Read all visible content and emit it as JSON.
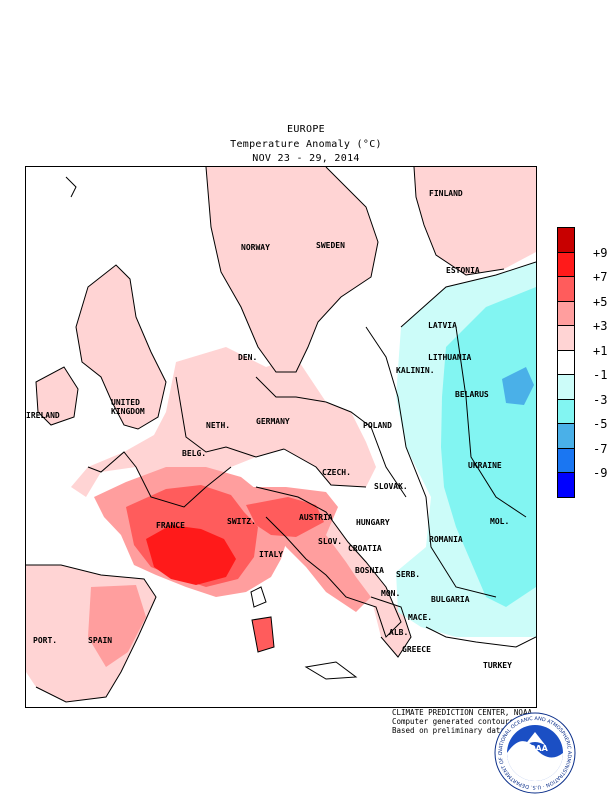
{
  "header": {
    "region": "EUROPE",
    "metric": "Temperature Anomaly (°C)",
    "period": "NOV 23 - 29, 2014"
  },
  "countries": [
    {
      "label": "FINLAND",
      "anomaly_class": "+1 to +3"
    },
    {
      "label": "NORWAY",
      "anomaly_class": "+1 to +3"
    },
    {
      "label": "SWEDEN",
      "anomaly_class": "+1 to +3"
    },
    {
      "label": "ESTONIA",
      "anomaly_class": "+1 to +3"
    },
    {
      "label": "LATVIA",
      "anomaly_class": "-1 to -3"
    },
    {
      "label": "LITHUANIA",
      "anomaly_class": "-1 to -3"
    },
    {
      "label": "KALININ.",
      "anomaly_class": "-1 to -3"
    },
    {
      "label": "DEN.",
      "anomaly_class": "+1 to +3"
    },
    {
      "label": "BELARUS",
      "anomaly_class": "-3 to -5"
    },
    {
      "label": "IRELAND",
      "anomaly_class": "+1 to +3"
    },
    {
      "label": "UNITED",
      "anomaly_class": "+1 to +3"
    },
    {
      "label": "KINGDOM",
      "anomaly_class": "+1 to +3"
    },
    {
      "label": "NETH.",
      "anomaly_class": "+1 to +3"
    },
    {
      "label": "GERMANY",
      "anomaly_class": "+1 to +3"
    },
    {
      "label": "POLAND",
      "anomaly_class": "-1 to +1"
    },
    {
      "label": "BELG.",
      "anomaly_class": "+1 to +3"
    },
    {
      "label": "UKRAINE",
      "anomaly_class": "-3 to -5"
    },
    {
      "label": "CZECH.",
      "anomaly_class": "+1 to +3"
    },
    {
      "label": "SLOVAK.",
      "anomaly_class": "-1 to +1"
    },
    {
      "label": "FRANCE",
      "anomaly_class": "+5 to +7"
    },
    {
      "label": "SWITZ.",
      "anomaly_class": "+5 to +7"
    },
    {
      "label": "AUSTRIA",
      "anomaly_class": "+5 to +7"
    },
    {
      "label": "HUNGARY",
      "anomaly_class": "-1 to +1"
    },
    {
      "label": "MOL.",
      "anomaly_class": "-3 to -5"
    },
    {
      "label": "SLOV.",
      "anomaly_class": "+1 to +3"
    },
    {
      "label": "ROMANIA",
      "anomaly_class": "-1 to -3"
    },
    {
      "label": "CROATIA",
      "anomaly_class": "-1 to +1"
    },
    {
      "label": "ITALY",
      "anomaly_class": "+3 to +5"
    },
    {
      "label": "BOSNIA",
      "anomaly_class": "-1 to +1"
    },
    {
      "label": "SERB.",
      "anomaly_class": "-1 to +1"
    },
    {
      "label": "MON.",
      "anomaly_class": "+1 to +3"
    },
    {
      "label": "BULGARIA",
      "anomaly_class": "-1 to -3"
    },
    {
      "label": "PORT.",
      "anomaly_class": "+1 to +3"
    },
    {
      "label": "SPAIN",
      "anomaly_class": "+1 to +3"
    },
    {
      "label": "MACE.",
      "anomaly_class": "-1 to +1"
    },
    {
      "label": "ALB.",
      "anomaly_class": "+1 to +3"
    },
    {
      "label": "GREECE",
      "anomaly_class": "-1 to +1"
    },
    {
      "label": "TURKEY",
      "anomaly_class": "-1 to -3"
    }
  ],
  "legend": {
    "colors": [
      "#c80000",
      "#ff1a1a",
      "#ff5c5c",
      "#ff9e9e",
      "#ffd4d4",
      "#ffffff",
      "#ccfcf9",
      "#82f5f2",
      "#4ab0e8",
      "#1a76f2",
      "#0000ff"
    ],
    "labels": [
      "+9",
      "+7",
      "+5",
      "+3",
      "+1",
      "-1",
      "-3",
      "-5",
      "-7",
      "-9"
    ]
  },
  "credits": {
    "line1": "CLIMATE PREDICTION CENTER, NOAA",
    "line2": "Computer generated contours",
    "line3": "Based on preliminary data"
  },
  "logo": {
    "center_text": "NOAA",
    "ring_text": "NATIONAL OCEANIC AND ATMOSPHERIC ADMINISTRATION · U.S. DEPARTMENT OF COMMERCE ·"
  }
}
